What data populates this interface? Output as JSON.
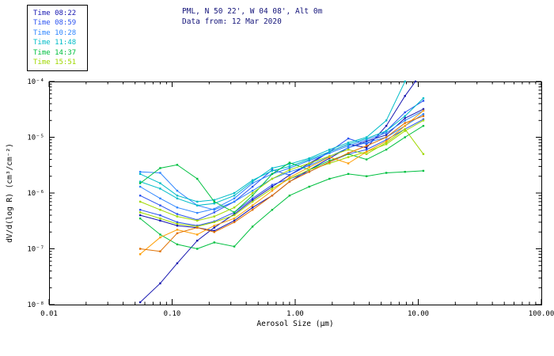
{
  "header": {
    "line1": "PML, N 50 22', W 04 08', Alt 0m",
    "line2": "Data from: 12 Mar 2020",
    "color": "#14147a"
  },
  "legend": {
    "items": [
      {
        "label": "Time 08:22",
        "color": "#1515b0"
      },
      {
        "label": "Time 08:59",
        "color": "#2a52f0"
      },
      {
        "label": "Time 10:28",
        "color": "#2f86ff"
      },
      {
        "label": "Time 11:48",
        "color": "#00bcc8"
      },
      {
        "label": "Time 14:37",
        "color": "#00c040"
      },
      {
        "label": "Time 15:51",
        "color": "#a0d800"
      }
    ]
  },
  "chart_data": {
    "type": "line",
    "title": "PML, N 50 22', W 04 08', Alt 0m",
    "subtitle": "Data from: 12 Mar 2020",
    "xlabel": "Aerosol Size (μm)",
    "ylabel": "dV/d(log R) (cm³/cm⁻²)",
    "x_scale": "log",
    "y_scale": "log",
    "xlim": [
      0.01,
      100
    ],
    "ylim": [
      1e-08,
      0.0001
    ],
    "grid": false,
    "legend_position": "outside-top-left",
    "x_tick_values": [
      0.01,
      0.1,
      1,
      10,
      100
    ],
    "x_tick_labels": [
      "0.01",
      "0.10",
      "1.00",
      "10.00",
      "100.00"
    ],
    "y_tick_values": [
      1e-08,
      1e-07,
      1e-06,
      1e-05,
      0.0001
    ],
    "y_tick_labels": [
      "10⁻⁸",
      "10⁻⁷",
      "10⁻⁶",
      "10⁻⁵",
      "10⁻⁴"
    ],
    "series": [
      {
        "name": "time-08:22-a",
        "color": "#1515b0",
        "x": [
          0.055,
          0.08,
          0.11,
          0.16,
          0.22,
          0.32,
          0.45,
          0.65,
          0.9,
          1.3,
          1.9,
          2.7,
          3.8,
          5.5,
          7.8,
          11
        ],
        "y": [
          4e-07,
          3.2e-07,
          2.6e-07,
          2.4e-07,
          2.1e-07,
          3.2e-07,
          5.5e-07,
          9e-07,
          1.6e-06,
          2.6e-06,
          4.2e-06,
          6.5e-06,
          8.5e-06,
          1.1e-05,
          2.2e-05,
          3.2e-05
        ]
      },
      {
        "name": "time-08:22-b",
        "color": "#1515b0",
        "x": [
          0.055,
          0.08,
          0.11,
          0.16,
          0.22,
          0.32,
          0.45,
          0.65,
          0.9,
          1.3,
          1.9,
          2.7,
          3.8,
          5.5,
          7.8,
          9.5
        ],
        "y": [
          1.1e-08,
          2.4e-08,
          5.5e-08,
          1.4e-07,
          2.4e-07,
          4.2e-07,
          7.5e-07,
          1.3e-06,
          2.1e-06,
          3.4e-06,
          5.5e-06,
          7.5e-06,
          6.5e-06,
          1.6e-05,
          5.5e-05,
          0.0001
        ]
      },
      {
        "name": "time-08:59-a",
        "color": "#2a52f0",
        "x": [
          0.055,
          0.08,
          0.11,
          0.16,
          0.22,
          0.32,
          0.45,
          0.65,
          0.9,
          1.3,
          1.9,
          2.7,
          3.8,
          5.5,
          7.8,
          11
        ],
        "y": [
          9e-07,
          6e-07,
          4.2e-07,
          3.3e-07,
          4.5e-07,
          7e-07,
          1.3e-06,
          2.6e-06,
          2.1e-06,
          3.2e-06,
          5.5e-06,
          9.5e-06,
          7.5e-06,
          1.3e-05,
          2.8e-05,
          4.5e-05
        ]
      },
      {
        "name": "time-08:59-b",
        "color": "#2a52f0",
        "x": [
          0.055,
          0.08,
          0.11,
          0.16,
          0.22,
          0.32,
          0.45,
          0.65,
          0.9,
          1.3,
          1.9,
          2.7,
          3.8,
          5.5,
          7.8,
          11
        ],
        "y": [
          5e-07,
          4e-07,
          3e-07,
          2.6e-07,
          3.1e-07,
          4.5e-07,
          8e-07,
          1.4e-06,
          1.8e-06,
          2.4e-06,
          3.6e-06,
          5e-06,
          6e-06,
          9e-06,
          1.4e-05,
          2.1e-05
        ]
      },
      {
        "name": "time-10:28-a",
        "color": "#2f86ff",
        "x": [
          0.055,
          0.08,
          0.11,
          0.16,
          0.22,
          0.32,
          0.45,
          0.65,
          0.9,
          1.3,
          1.9,
          2.7,
          3.8,
          5.5,
          7.8,
          11
        ],
        "y": [
          2.4e-06,
          2.3e-06,
          1.1e-06,
          6e-07,
          5e-07,
          7e-07,
          1.1e-06,
          1.8e-06,
          2.4e-06,
          3.1e-06,
          4.5e-06,
          6.5e-06,
          8e-06,
          1e-05,
          1.6e-05,
          2.6e-05
        ]
      },
      {
        "name": "time-10:28-b",
        "color": "#2f86ff",
        "x": [
          0.055,
          0.08,
          0.11,
          0.16,
          0.22,
          0.32,
          0.45,
          0.65,
          0.9,
          1.3,
          1.9,
          2.7,
          3.8,
          5.5,
          7.8,
          11
        ],
        "y": [
          1.3e-06,
          8e-07,
          5.5e-07,
          4.4e-07,
          5.2e-07,
          8e-07,
          1.5e-06,
          2.2e-06,
          2.8e-06,
          3.8e-06,
          5.2e-06,
          7e-06,
          9e-06,
          1.2e-05,
          2e-05,
          3e-05
        ]
      },
      {
        "name": "time-11:48-a",
        "color": "#00bcc8",
        "x": [
          0.055,
          0.08,
          0.11,
          0.16,
          0.22,
          0.32,
          0.45,
          0.65,
          0.9,
          1.3,
          1.9,
          2.7,
          3.8,
          5.5,
          7.8
        ],
        "y": [
          1.6e-06,
          1.2e-06,
          8e-07,
          6e-07,
          6.5e-07,
          9e-07,
          1.6e-06,
          2.8e-06,
          3.3e-06,
          4.2e-06,
          6e-06,
          8e-06,
          1e-05,
          2e-05,
          0.0001
        ]
      },
      {
        "name": "time-11:48-b",
        "color": "#00bcc8",
        "x": [
          0.055,
          0.08,
          0.11,
          0.16,
          0.22,
          0.32,
          0.45,
          0.65,
          0.9,
          1.3,
          1.9,
          2.7,
          3.8,
          5.5,
          7.8,
          11
        ],
        "y": [
          2.2e-06,
          1.5e-06,
          9e-07,
          7e-07,
          7.5e-07,
          1e-06,
          1.7e-06,
          2.5e-06,
          3e-06,
          4e-06,
          5.5e-06,
          7.5e-06,
          9.5e-06,
          1.3e-05,
          2.4e-05,
          5e-05
        ]
      },
      {
        "name": "time-14:37-a",
        "color": "#00c040",
        "x": [
          0.055,
          0.08,
          0.11,
          0.16,
          0.22,
          0.32,
          0.45,
          0.65,
          0.9,
          1.3,
          1.9,
          2.7,
          3.8,
          5.5,
          7.8,
          11
        ],
        "y": [
          1.5e-06,
          2.8e-06,
          3.2e-06,
          1.8e-06,
          7e-07,
          4.5e-07,
          9e-07,
          2.2e-06,
          3.5e-06,
          2.6e-06,
          3.8e-06,
          5e-06,
          4e-06,
          6e-06,
          1e-05,
          1.6e-05
        ]
      },
      {
        "name": "time-14:37-b",
        "color": "#00c040",
        "x": [
          0.055,
          0.08,
          0.11,
          0.16,
          0.22,
          0.32,
          0.45,
          0.65,
          0.9,
          1.3,
          1.9,
          2.7,
          3.8,
          5.5,
          7.8,
          11
        ],
        "y": [
          3.5e-07,
          1.8e-07,
          1.2e-07,
          1e-07,
          1.3e-07,
          1.1e-07,
          2.5e-07,
          5e-07,
          9e-07,
          1.3e-06,
          1.8e-06,
          2.2e-06,
          2e-06,
          2.3e-06,
          2.4e-06,
          2.5e-06
        ]
      },
      {
        "name": "time-15:51-a",
        "color": "#a0d800",
        "x": [
          0.055,
          0.08,
          0.11,
          0.16,
          0.22,
          0.32,
          0.45,
          0.65,
          0.9,
          1.3,
          1.9,
          2.7,
          3.8,
          5.5,
          7.8,
          11
        ],
        "y": [
          7e-07,
          5e-07,
          3.8e-07,
          3.2e-07,
          3.8e-07,
          5.5e-07,
          1e-06,
          1.8e-06,
          2.6e-06,
          3.4e-06,
          4.6e-06,
          6e-06,
          5e-06,
          8e-06,
          1.4e-05,
          5e-06
        ]
      },
      {
        "name": "time-15:51-b",
        "color": "#a0d800",
        "x": [
          0.055,
          0.08,
          0.11,
          0.16,
          0.22,
          0.32,
          0.45,
          0.65,
          0.9,
          1.3,
          1.9,
          2.7,
          3.8,
          5.5,
          7.8,
          11
        ],
        "y": [
          4.5e-07,
          3.5e-07,
          2.8e-07,
          2.5e-07,
          3e-07,
          4e-07,
          7e-07,
          1.2e-06,
          1.8e-06,
          2.6e-06,
          3.4e-06,
          4.4e-06,
          5.5e-06,
          7.5e-06,
          1.3e-05,
          2e-05
        ]
      },
      {
        "name": "orange-line-1",
        "color": "#ff9d00",
        "x": [
          0.055,
          0.08,
          0.11,
          0.16,
          0.22,
          0.32,
          0.45,
          0.65,
          0.9,
          1.3,
          1.9,
          2.7,
          3.8,
          5.5,
          7.8,
          11
        ],
        "y": [
          8e-08,
          1.6e-07,
          2.2e-07,
          1.8e-07,
          2.6e-07,
          3.5e-07,
          6e-07,
          1.1e-06,
          1.9e-06,
          2.9e-06,
          4.4e-06,
          3.4e-06,
          5.5e-06,
          8.5e-06,
          1.6e-05,
          3e-05
        ]
      },
      {
        "name": "orange-line-2",
        "color": "#e07000",
        "x": [
          0.055,
          0.08,
          0.11,
          0.16,
          0.22,
          0.32,
          0.45,
          0.65,
          0.9,
          1.3,
          1.9,
          2.7,
          3.8,
          5.5,
          7.8,
          11
        ],
        "y": [
          1e-07,
          9e-08,
          1.9e-07,
          2.4e-07,
          2e-07,
          3e-07,
          5e-07,
          9e-07,
          1.6e-06,
          2.4e-06,
          3.6e-06,
          5.2e-06,
          7e-06,
          1e-05,
          1.8e-05,
          2.4e-05
        ]
      }
    ]
  }
}
